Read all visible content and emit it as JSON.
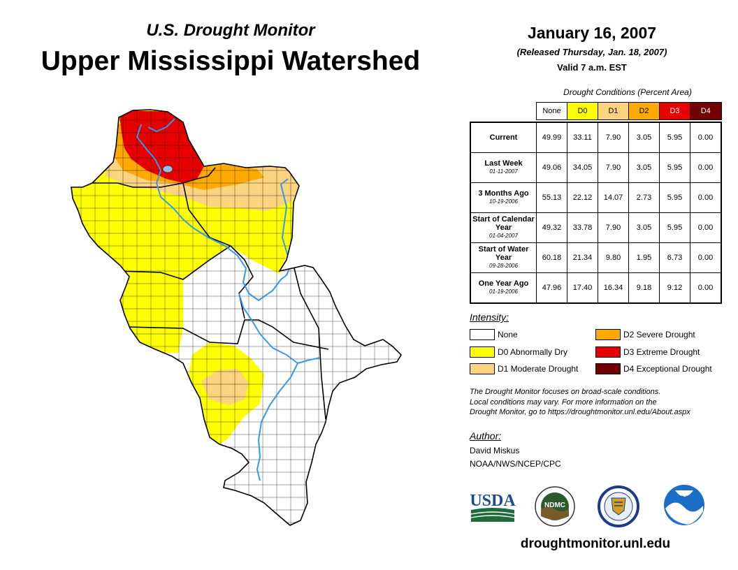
{
  "header": {
    "subtitle": "U.S. Drought Monitor",
    "title": "Upper Mississippi Watershed",
    "date": "January 16, 2007",
    "released": "(Released Thursday, Jan. 18, 2007)",
    "valid": "Valid 7 a.m. EST"
  },
  "stats_table": {
    "caption": "Drought Conditions (Percent Area)",
    "columns": [
      "None",
      "D0",
      "D1",
      "D2",
      "D3",
      "D4"
    ],
    "rows": [
      {
        "label": "Current",
        "date": "",
        "values": [
          "49.99",
          "33.11",
          "7.90",
          "3.05",
          "5.95",
          "0.00"
        ]
      },
      {
        "label": "Last Week",
        "date": "01-11-2007",
        "values": [
          "49.06",
          "34.05",
          "7.90",
          "3.05",
          "5.95",
          "0.00"
        ]
      },
      {
        "label": "3 Months Ago",
        "date": "10-19-2006",
        "values": [
          "55.13",
          "22.12",
          "14.07",
          "2.73",
          "5.95",
          "0.00"
        ]
      },
      {
        "label": "Start of Calendar Year",
        "date": "01-04-2007",
        "values": [
          "49.32",
          "33.78",
          "7.90",
          "3.05",
          "5.95",
          "0.00"
        ]
      },
      {
        "label": "Start of Water Year",
        "date": "09-28-2006",
        "values": [
          "60.18",
          "21.34",
          "9.80",
          "1.95",
          "6.73",
          "0.00"
        ]
      },
      {
        "label": "One Year Ago",
        "date": "01-19-2006",
        "values": [
          "47.96",
          "17.40",
          "16.34",
          "9.18",
          "9.12",
          "0.00"
        ]
      }
    ]
  },
  "legend": {
    "title": "Intensity:",
    "items": [
      {
        "label": "None",
        "color": "#ffffff"
      },
      {
        "label": "D0 Abnormally Dry",
        "color": "#ffff00"
      },
      {
        "label": "D1 Moderate Drought",
        "color": "#fcd37f"
      },
      {
        "label": "D2 Severe Drought",
        "color": "#ffaa00"
      },
      {
        "label": "D3 Extreme Drought",
        "color": "#e60000"
      },
      {
        "label": "D4 Exceptional Drought",
        "color": "#730000"
      }
    ]
  },
  "note": {
    "line1": "The Drought Monitor focuses on broad-scale conditions.",
    "line2": "Local conditions may vary. For more information on the",
    "line3": "Drought Monitor, go to https://droughtmonitor.unl.edu/About.aspx"
  },
  "author": {
    "title": "Author:",
    "name": "David Miskus",
    "org": "NOAA/NWS/NCEP/CPC"
  },
  "logos": {
    "usda": "USDA",
    "ndmc": "NDMC",
    "noaa": "NOAA"
  },
  "website": "droughtmonitor.unl.edu",
  "colors": {
    "none": "#ffffff",
    "d0": "#ffff00",
    "d1": "#fcd37f",
    "d2": "#ffaa00",
    "d3": "#e60000",
    "d4": "#730000",
    "river": "#3399ee"
  }
}
